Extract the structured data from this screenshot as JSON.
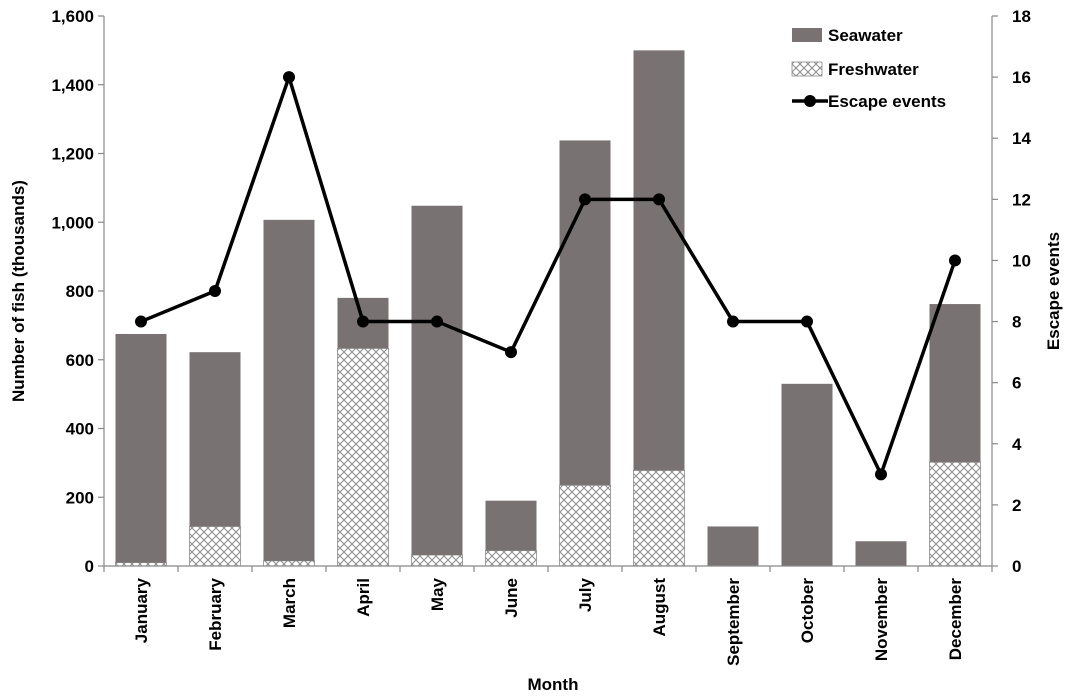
{
  "colors": {
    "seawater": "#787272",
    "freshwater_bg": "#ffffff",
    "freshwater_hatch": "#8c8c8c",
    "line": "#000000",
    "axis": "#888888"
  },
  "chart_data": {
    "type": "bar",
    "stacked": true,
    "xlabel": "Month",
    "ylabel": "Number of fish (thousands)",
    "y2label": "Escape events",
    "ylim": [
      0,
      1600
    ],
    "y2lim": [
      0,
      18
    ],
    "yticks": [
      "0",
      "200",
      "400",
      "600",
      "800",
      "1,000",
      "1,200",
      "1,400",
      "1,600"
    ],
    "y2ticks": [
      "0",
      "2",
      "4",
      "6",
      "8",
      "10",
      "12",
      "14",
      "16",
      "18"
    ],
    "categories": [
      "January",
      "February",
      "March",
      "April",
      "May",
      "June",
      "July",
      "August",
      "September",
      "October",
      "November",
      "December"
    ],
    "series": [
      {
        "name": "Freshwater",
        "kind": "bar",
        "values": [
          10,
          115,
          15,
          633,
          32,
          45,
          235,
          278,
          0,
          0,
          0,
          302
        ]
      },
      {
        "name": "Seawater",
        "kind": "bar",
        "values": [
          665,
          507,
          992,
          147,
          1016,
          145,
          1003,
          1222,
          115,
          530,
          72,
          460
        ]
      },
      {
        "name": "Escape events",
        "kind": "line",
        "axis": "right",
        "values": [
          8,
          9,
          16,
          8,
          8,
          7,
          12,
          12,
          8,
          8,
          3,
          10
        ]
      }
    ],
    "legend": {
      "position": "top-right",
      "items": [
        "Seawater",
        "Freshwater",
        "Escape events"
      ]
    },
    "grid": false
  }
}
